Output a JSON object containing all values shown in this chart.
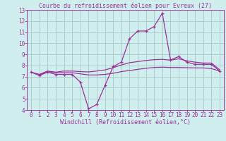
{
  "background_color": "#d0eeee",
  "grid_color": "#aacccc",
  "line_color": "#993399",
  "xlabel": "Windchill (Refroidissement éolien,°C)",
  "title": "Courbe du refroidissement éolien pour Evreux (27)",
  "xlim": [
    -0.5,
    23.5
  ],
  "ylim": [
    4,
    13
  ],
  "xticks": [
    0,
    1,
    2,
    3,
    4,
    5,
    6,
    7,
    8,
    9,
    10,
    11,
    12,
    13,
    14,
    15,
    16,
    17,
    18,
    19,
    20,
    21,
    22,
    23
  ],
  "yticks": [
    4,
    5,
    6,
    7,
    8,
    9,
    10,
    11,
    12,
    13
  ],
  "line1_x": [
    0,
    1,
    2,
    3,
    4,
    5,
    6,
    7,
    8,
    9,
    10,
    11,
    12,
    13,
    14,
    15,
    16,
    17,
    18,
    19,
    20,
    21,
    22,
    23
  ],
  "line1_y": [
    7.4,
    7.1,
    7.4,
    7.2,
    7.2,
    7.2,
    6.5,
    4.1,
    4.5,
    6.2,
    7.9,
    8.3,
    10.4,
    11.1,
    11.1,
    11.5,
    12.7,
    8.5,
    8.8,
    8.3,
    8.1,
    8.1,
    8.1,
    7.5
  ],
  "line2_x": [
    0,
    1,
    2,
    3,
    4,
    5,
    6,
    7,
    8,
    9,
    10,
    11,
    12,
    13,
    14,
    15,
    16,
    17,
    18,
    19,
    20,
    21,
    22,
    23
  ],
  "line2_y": [
    7.4,
    7.15,
    7.45,
    7.35,
    7.35,
    7.35,
    7.25,
    7.15,
    7.15,
    7.2,
    7.3,
    7.45,
    7.55,
    7.65,
    7.75,
    7.82,
    7.85,
    7.82,
    7.82,
    7.8,
    7.78,
    7.78,
    7.72,
    7.5
  ],
  "line3_x": [
    0,
    1,
    2,
    3,
    4,
    5,
    6,
    7,
    8,
    9,
    10,
    11,
    12,
    13,
    14,
    15,
    16,
    17,
    18,
    19,
    20,
    21,
    22,
    23
  ],
  "line3_y": [
    7.4,
    7.2,
    7.5,
    7.4,
    7.5,
    7.5,
    7.45,
    7.42,
    7.5,
    7.6,
    7.8,
    8.05,
    8.25,
    8.35,
    8.45,
    8.52,
    8.55,
    8.48,
    8.6,
    8.42,
    8.3,
    8.22,
    8.22,
    7.62
  ],
  "tick_fontsize": 5.5,
  "label_fontsize": 6,
  "title_fontsize": 6
}
